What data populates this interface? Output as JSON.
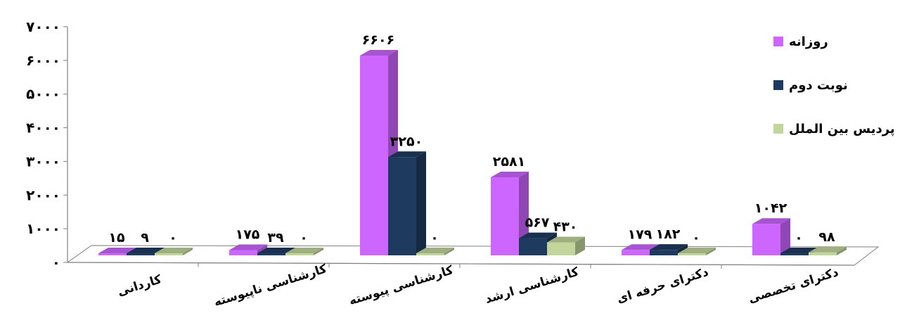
{
  "chart_data": {
    "type": "bar",
    "categories": [
      "کاردانی",
      "کارشناسی ناپیوسته",
      "کارشناسی پیوسته",
      "کارشناسی ارشد",
      "دکترای حرفه ای",
      "دکترای تخصصی"
    ],
    "series": [
      {
        "name": "روزانه",
        "values": [
          15,
          175,
          6606,
          2581,
          179,
          1042
        ],
        "labels": [
          "۱۵",
          "۱۷۵",
          "۶۶۰۶",
          "۲۵۸۱",
          "۱۷۹",
          "۱۰۴۲"
        ],
        "color": "#CC66FF"
      },
      {
        "name": "نوبت دوم",
        "values": [
          9,
          39,
          3250,
          567,
          182,
          0
        ],
        "labels": [
          "۹",
          "۳۹",
          "۳۲۵۰",
          "۵۶۷",
          "۱۸۲",
          "۰"
        ],
        "color": "#1F3A5F"
      },
      {
        "name": "پردیس بین الملل",
        "values": [
          0,
          0,
          0,
          430,
          0,
          98
        ],
        "labels": [
          "۰",
          "۰",
          "۰",
          "۴۳۰",
          "۰",
          "۹۸"
        ],
        "color": "#C2D69B"
      }
    ],
    "y_ticks": [
      0,
      1000,
      2000,
      3000,
      4000,
      5000,
      6000,
      7000
    ],
    "y_tick_labels": [
      "۰",
      "۱۰۰۰",
      "۲۰۰۰",
      "۳۰۰۰",
      "۴۰۰۰",
      "۵۰۰۰",
      "۶۰۰۰",
      "۷۰۰۰"
    ],
    "ylim": [
      0,
      7000
    ],
    "title": "",
    "xlabel": "",
    "ylabel": "",
    "legend_position": "right",
    "style": "3d-clustered-column",
    "grid": false
  }
}
